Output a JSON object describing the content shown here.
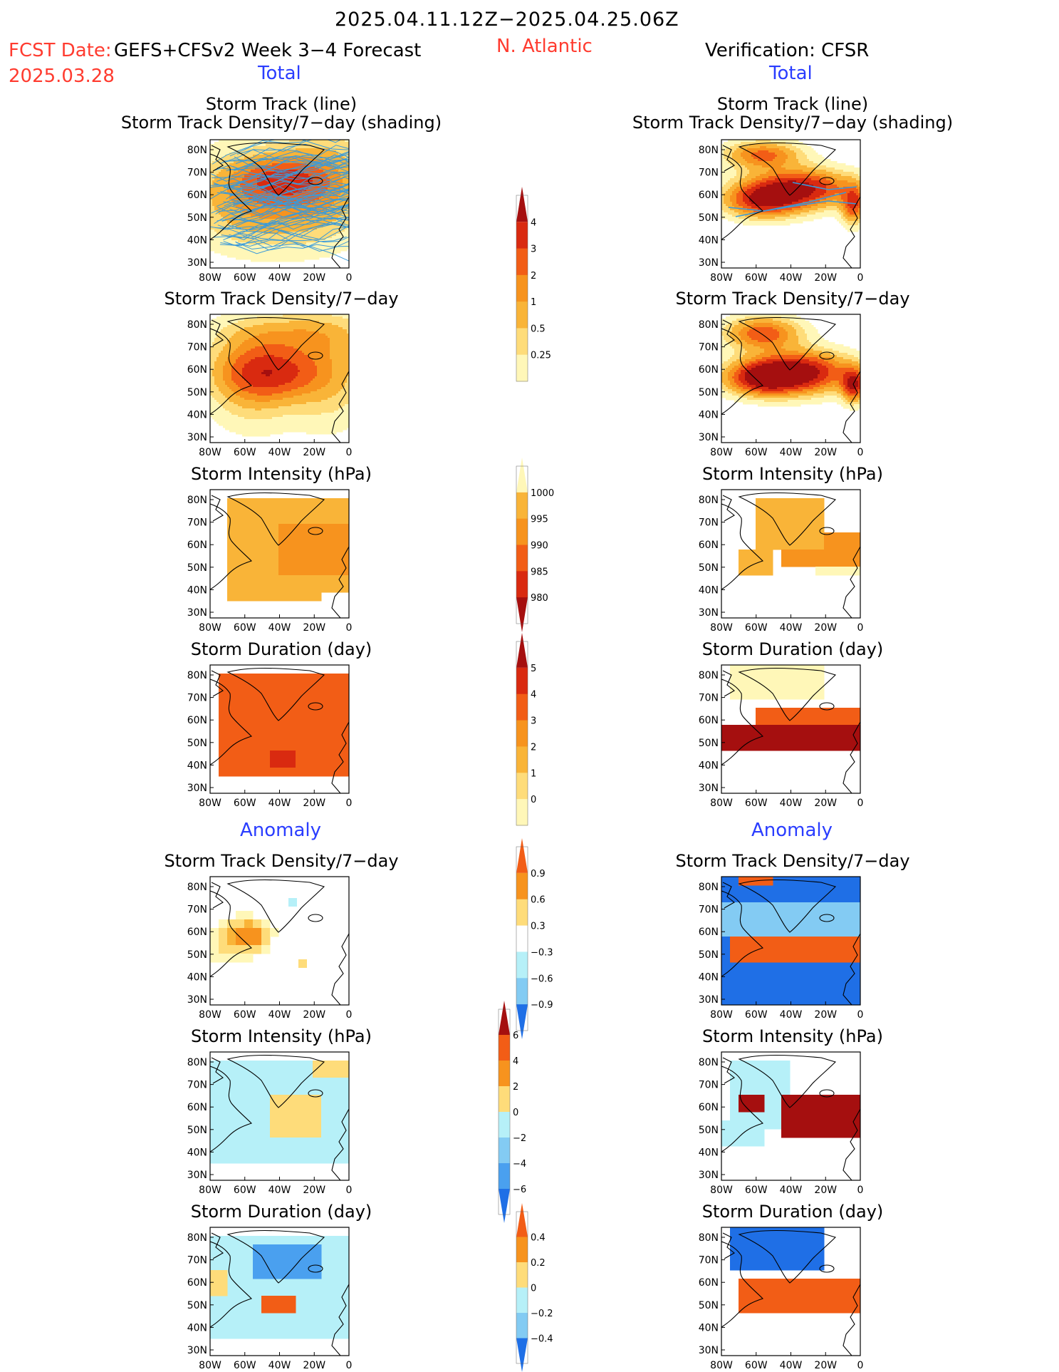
{
  "header": {
    "date_range": "2025.04.11.12Z−2025.04.25.06Z",
    "fcst_label": "FCST Date:",
    "model_label": "GEFS+CFSv2 Week 3−4 Forecast",
    "fcst_date": "2025.03.28",
    "region": "N. Atlantic",
    "verification": "Verification: CFSR"
  },
  "sections": {
    "total": "Total",
    "anomaly": "Anomaly"
  },
  "titles": {
    "track_line": "Storm Track (line)",
    "track_shading": "Storm Track Density/7−day (shading)",
    "density": "Storm Track Density/7−day",
    "intensity": "Storm Intensity (hPa)",
    "duration": "Storm Duration (day)"
  },
  "axes": {
    "lat": [
      "80N",
      "70N",
      "60N",
      "50N",
      "40N",
      "30N"
    ],
    "lon": [
      "80W",
      "60W",
      "40W",
      "20W",
      "0"
    ]
  },
  "colorbars": [
    {
      "name": "density-total",
      "labels": [
        "4",
        "3",
        "2",
        "1",
        "0.5",
        "0.25"
      ]
    },
    {
      "name": "intensity-total",
      "labels": [
        "1000",
        "995",
        "990",
        "985",
        "980"
      ]
    },
    {
      "name": "duration-total",
      "labels": [
        "5",
        "4",
        "3",
        "2",
        "1",
        "0"
      ]
    },
    {
      "name": "density-anom",
      "labels": [
        "0.9",
        "0.6",
        "0.3",
        "−0.3",
        "−0.6",
        "−0.9"
      ]
    },
    {
      "name": "intensity-anom",
      "labels": [
        "6",
        "4",
        "2",
        "0",
        "−2",
        "−4",
        "−6"
      ]
    },
    {
      "name": "duration-anom",
      "labels": [
        "0.4",
        "0.2",
        "0",
        "−0.2",
        "−0.4"
      ]
    }
  ],
  "colors": {
    "warm": [
      "#fff7b8",
      "#fedc7a",
      "#f9b438",
      "#f7931e",
      "#f25d16",
      "#d92a10",
      "#a50f0f"
    ],
    "cool": [
      "#ffffff",
      "#b6f0f8",
      "#83cbf3",
      "#4aa0ef",
      "#1f6fe6"
    ],
    "track_line": "#3a9ad9",
    "title_red": "#ff3b2f",
    "title_blue": "#2a3dff"
  }
}
